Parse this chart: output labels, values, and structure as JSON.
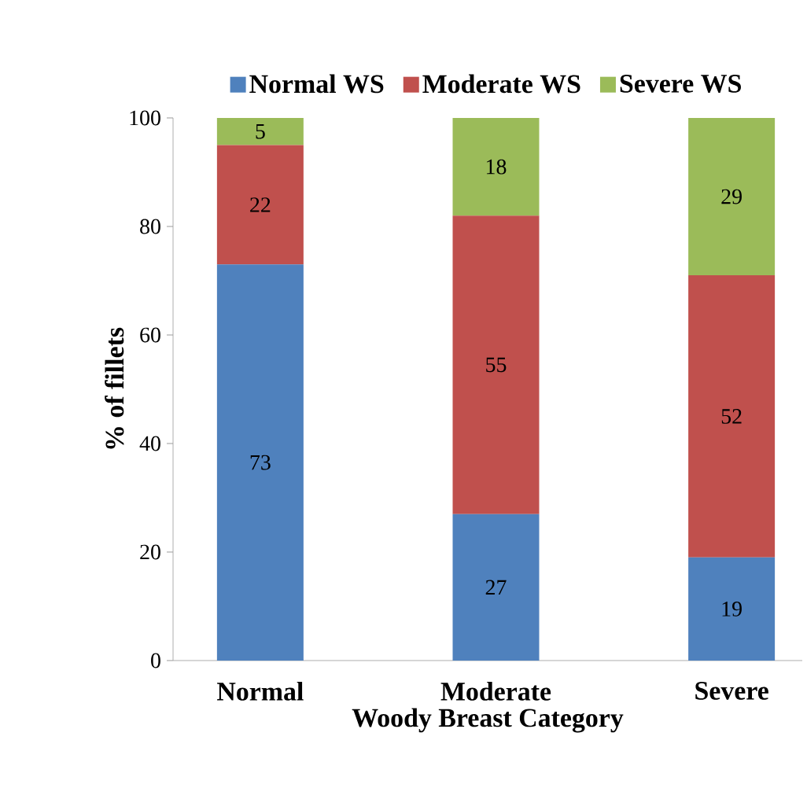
{
  "chart_data": {
    "type": "bar",
    "stacked": true,
    "xlabel": "Woody Breast Category",
    "ylabel": "% of fillets",
    "categories": [
      "Normal",
      "Moderate",
      "Severe"
    ],
    "series": [
      {
        "name": "Normal WS",
        "color": "#4f81bd",
        "values": [
          73,
          27,
          19
        ]
      },
      {
        "name": "Moderate WS",
        "color": "#c0504d",
        "values": [
          22,
          55,
          52
        ]
      },
      {
        "name": "Severe WS",
        "color": "#9bbb59",
        "values": [
          5,
          18,
          29
        ]
      }
    ],
    "ylim": [
      0,
      100
    ],
    "yticks": [
      0,
      20,
      40,
      60,
      80,
      100
    ],
    "data_labels": true,
    "legend": "top",
    "grid": false
  }
}
